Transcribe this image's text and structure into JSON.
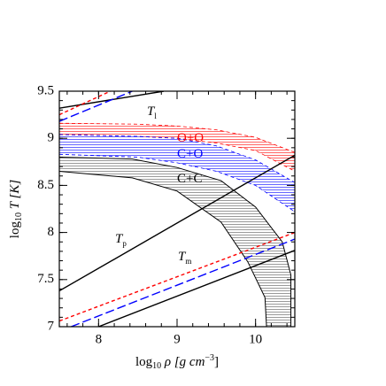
{
  "chart_data": {
    "type": "line",
    "xlabel": {
      "main": "log",
      "sub": "10",
      "rest": " ρ [g cm",
      "sup": "−3",
      "end": "]"
    },
    "ylabel": {
      "main": "log",
      "sub": "10",
      "rest": " T [K]"
    },
    "xlim": [
      7.5,
      10.5
    ],
    "ylim": [
      7,
      9.5
    ],
    "xticks": [
      8,
      9,
      10
    ],
    "yticks": [
      7,
      7.5,
      8,
      8.5,
      9,
      9.5
    ],
    "series": [
      {
        "color": "#000000",
        "dash": "solid",
        "x": [
          7.5,
          8.83
        ],
        "values": [
          9.32,
          9.5
        ]
      },
      {
        "color": "#ff0000",
        "dash": "short",
        "x": [
          7.5,
          8.15
        ],
        "values": [
          9.25,
          9.5
        ]
      },
      {
        "color": "#0000ff",
        "dash": "long",
        "x": [
          7.5,
          8.43
        ],
        "values": [
          9.18,
          9.5
        ]
      },
      {
        "color": "#000000",
        "dash": "solid",
        "x": [
          7.5,
          10.5
        ],
        "values": [
          7.38,
          8.82
        ]
      },
      {
        "color": "#ff0000",
        "dash": "short",
        "x": [
          7.5,
          10.5
        ],
        "values": [
          7.06,
          8.0
        ]
      },
      {
        "color": "#0000ff",
        "dash": "long",
        "x": [
          7.65,
          10.5
        ],
        "values": [
          7.0,
          7.93
        ]
      },
      {
        "color": "#000000",
        "dash": "solid",
        "x": [
          8.0,
          10.5
        ],
        "values": [
          7.0,
          7.81
        ]
      }
    ],
    "bands": [
      {
        "color": "#ff0000",
        "dash": "short",
        "upper": {
          "x": [
            7.5,
            8.5,
            9.0,
            9.5,
            10.0,
            10.5
          ],
          "y": [
            9.16,
            9.15,
            9.13,
            9.09,
            9.01,
            8.85
          ]
        },
        "lower": {
          "x": [
            7.5,
            8.5,
            9.0,
            9.5,
            10.0,
            10.5
          ],
          "y": [
            9.04,
            9.02,
            9.0,
            8.95,
            8.87,
            8.65
          ]
        }
      },
      {
        "color": "#0000ff",
        "dash": "short",
        "upper": {
          "x": [
            7.5,
            8.5,
            9.0,
            9.5,
            10.0,
            10.5
          ],
          "y": [
            9.04,
            9.02,
            9.0,
            8.92,
            8.77,
            8.53
          ]
        },
        "lower": {
          "x": [
            7.5,
            8.5,
            9.0,
            9.5,
            10.0,
            10.5
          ],
          "y": [
            8.83,
            8.8,
            8.74,
            8.65,
            8.5,
            8.22
          ]
        }
      },
      {
        "color": "#555555",
        "dash": "solid",
        "upper": {
          "x": [
            7.5,
            8.43,
            9.0,
            9.56,
            10.0,
            10.34,
            10.45,
            10.45
          ],
          "y": [
            8.8,
            8.78,
            8.69,
            8.55,
            8.27,
            7.9,
            7.55,
            7.0
          ]
        },
        "lower": {
          "x": [
            7.5,
            8.43,
            9.0,
            9.56,
            9.9,
            10.12,
            10.14
          ],
          "y": [
            8.65,
            8.58,
            8.44,
            8.11,
            7.69,
            7.31,
            7.0
          ]
        }
      }
    ],
    "annotations": [
      {
        "text": "T",
        "sub": "l",
        "color": "#000000"
      },
      {
        "text": "O+O",
        "color": "#ff0000"
      },
      {
        "text": "C+O",
        "color": "#0000ff"
      },
      {
        "text": "C+C",
        "color": "#000000"
      },
      {
        "text": "T",
        "sub": "p",
        "color": "#000000"
      },
      {
        "text": "T",
        "sub": "m",
        "color": "#000000"
      }
    ]
  }
}
